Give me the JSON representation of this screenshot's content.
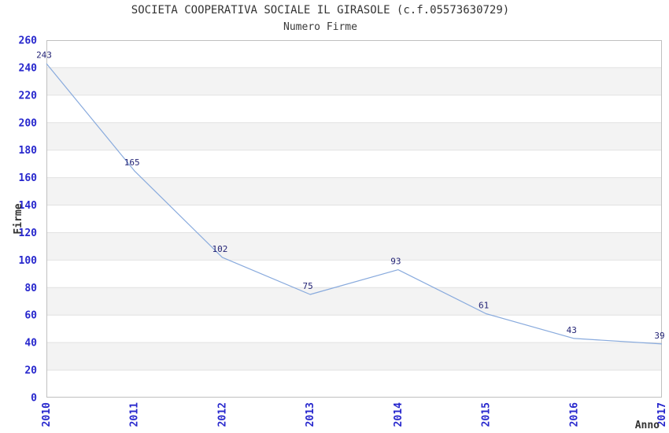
{
  "chart_data": {
    "type": "line",
    "title": "SOCIETA COOPERATIVA SOCIALE IL GIRASOLE (c.f.05573630729)",
    "subtitle": "Numero Firme",
    "xlabel": "Anno",
    "ylabel": "Firme",
    "categories": [
      "2010",
      "2011",
      "2012",
      "2013",
      "2014",
      "2015",
      "2016",
      "2017"
    ],
    "series": [
      {
        "name": "Numero Firme",
        "values": [
          243,
          165,
          102,
          75,
          93,
          61,
          43,
          39
        ]
      }
    ],
    "point_labels": [
      "243",
      "165",
      "102",
      "75",
      "93",
      "61",
      "43",
      "39"
    ],
    "ylim": [
      0,
      260
    ],
    "ytick_step": 20,
    "ytick_labels": [
      "0",
      "20",
      "40",
      "60",
      "80",
      "100",
      "120",
      "140",
      "160",
      "180",
      "200",
      "220",
      "240",
      "260"
    ],
    "grid": true,
    "legend_position": "none",
    "colors": {
      "line": "#88aadd",
      "tick_label": "#2727cd",
      "point_label": "#232375",
      "band_fill": "#f3f3f3",
      "gridline": "#e2e2e2",
      "plot_border": "#c0c0c0",
      "title_text": "#333333",
      "axis_title_text": "#333333",
      "background": "#ffffff"
    }
  }
}
